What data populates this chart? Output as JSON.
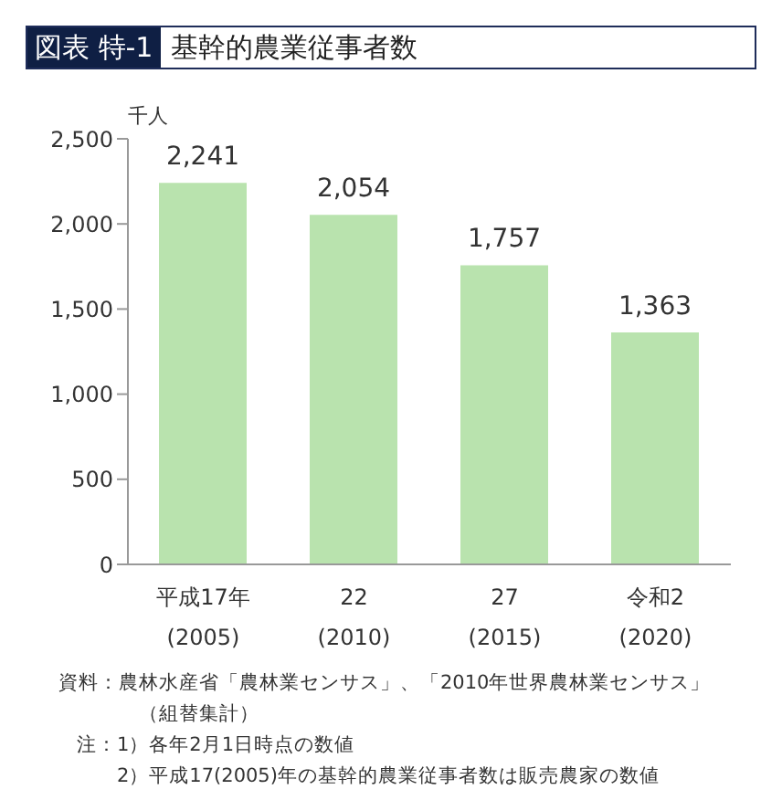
{
  "chart_data": {
    "type": "bar",
    "title": "基幹的農業従事者数",
    "ylabel": "千人",
    "categories": [
      "平成17年\n(2005)",
      "22\n(2010)",
      "27\n(2015)",
      "令和2\n(2020)"
    ],
    "values": [
      2241,
      2054,
      1757,
      1363
    ],
    "value_labels": [
      "2,241",
      "2,054",
      "1,757",
      "1,363"
    ],
    "color": "#b9e3ae",
    "ylim": [
      0,
      2500
    ],
    "yticks": [
      {
        "value": 0,
        "label": "0"
      },
      {
        "value": 500,
        "label": "500"
      },
      {
        "value": 1000,
        "label": "1,000"
      },
      {
        "value": 1500,
        "label": "1,500"
      },
      {
        "value": 2000,
        "label": "2,000"
      },
      {
        "value": 2500,
        "label": "2,500"
      }
    ],
    "grid": false,
    "legend": false,
    "annotations": [
      "図表 特-1",
      "資料：農林水産省「農林業センサス」、「2010年世界農林業センサス」",
      "（組替集計）",
      "注：1）各年2月1日時点の数値",
      "2）平成17(2005)年の基幹的農業従事者数は販売農家の数値"
    ]
  }
}
